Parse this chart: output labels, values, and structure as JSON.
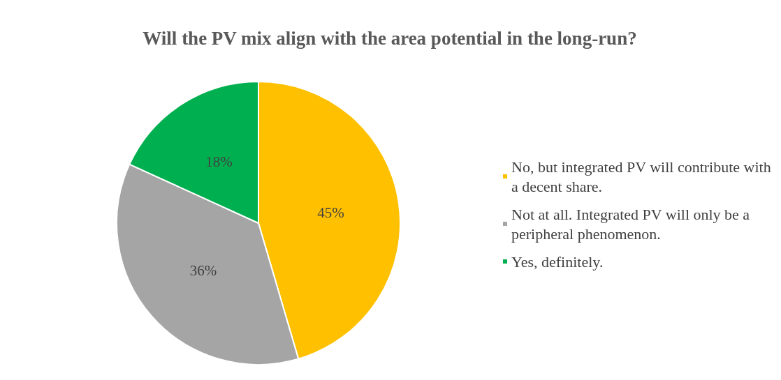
{
  "chart_data": {
    "type": "pie",
    "title": "Will the PV mix align with the area potential in the long-run?",
    "categories": [
      "No, but integrated PV will contribute with a decent share.",
      "Not at all. Integrated PV will only be a peripheral phenomenon.",
      "Yes, definitely."
    ],
    "values": [
      45,
      36,
      18
    ],
    "colors": [
      "#ffc000",
      "#a5a5a5",
      "#00b050"
    ],
    "value_labels": [
      "45%",
      "36%",
      "18%"
    ],
    "legend": "right"
  }
}
